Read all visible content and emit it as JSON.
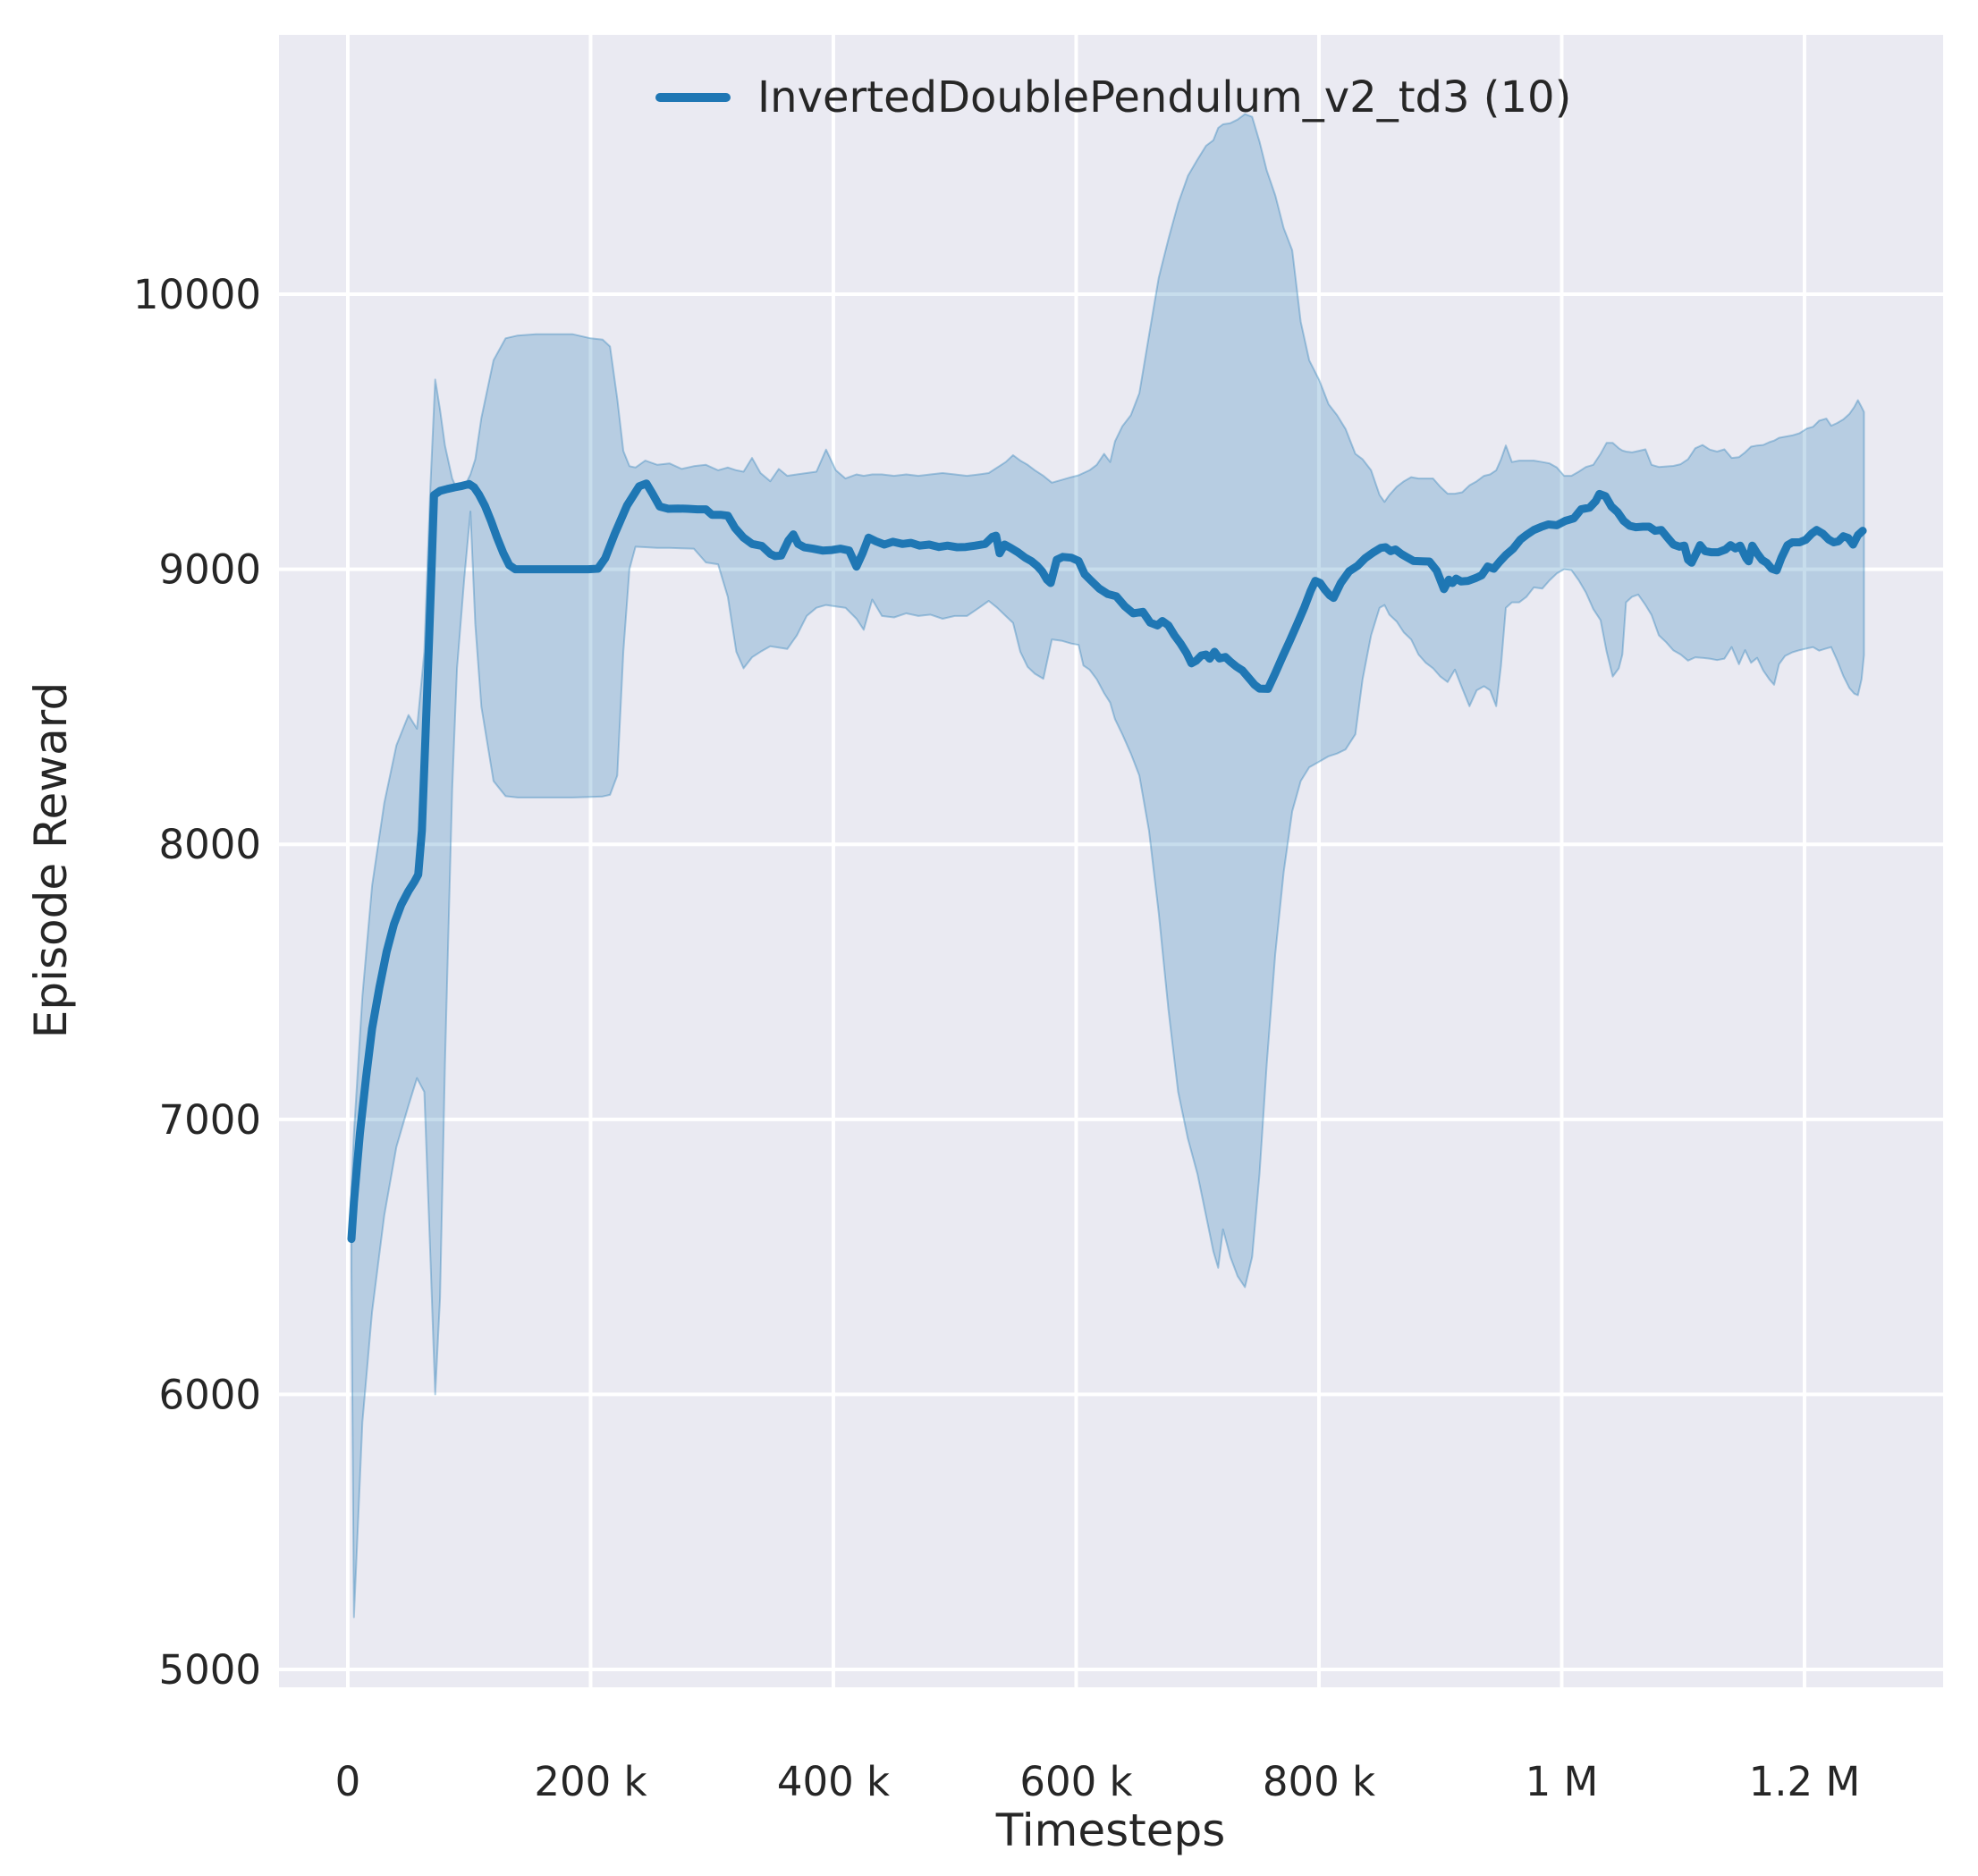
{
  "chart_data": {
    "type": "line",
    "title": "",
    "xlabel": "Timesteps",
    "ylabel": "Episode Reward",
    "grid": true,
    "legend_position": "upper right",
    "style": "seaborn-darkgrid",
    "x_unit": "timesteps, x values stored in thousands",
    "xlim_k": [
      -56.7,
      1314.2
    ],
    "ylim": [
      4935,
      10943
    ],
    "x_ticks": [
      {
        "value_k": 0,
        "label": "0"
      },
      {
        "value_k": 200,
        "label": "200 k"
      },
      {
        "value_k": 400,
        "label": "400 k"
      },
      {
        "value_k": 600,
        "label": "600 k"
      },
      {
        "value_k": 800,
        "label": "800 k"
      },
      {
        "value_k": 1000,
        "label": "1 M"
      },
      {
        "value_k": 1200,
        "label": "1.2 M"
      }
    ],
    "y_ticks": [
      {
        "value": 5000,
        "label": "5000"
      },
      {
        "value": 6000,
        "label": "6000"
      },
      {
        "value": 7000,
        "label": "7000"
      },
      {
        "value": 8000,
        "label": "8000"
      },
      {
        "value": 9000,
        "label": "9000"
      },
      {
        "value": 10000,
        "label": "10000"
      }
    ],
    "series": [
      {
        "name": "InvertedDoublePendulum_v2_td3 (10)",
        "color": "#1f77b4",
        "x_k": [
          3,
          5,
          10,
          15,
          20,
          26,
          32,
          38,
          44,
          50,
          55,
          58,
          61,
          64,
          67,
          69,
          71,
          76,
          82,
          88,
          94,
          100,
          104,
          108,
          113,
          118,
          123,
          128,
          133,
          138,
          148,
          158,
          168,
          178,
          188,
          198,
          206,
          212,
          220,
          230,
          240,
          246,
          251,
          257,
          264,
          272,
          280,
          288,
          295,
          300,
          307,
          313,
          319,
          326,
          333,
          341,
          348,
          352,
          357,
          363,
          367,
          371,
          376,
          383,
          391,
          399,
          406,
          413,
          419,
          424,
          429,
          435,
          442,
          449,
          457,
          464,
          471,
          479,
          487,
          494,
          502,
          509,
          517,
          525,
          531,
          534,
          537,
          541,
          546,
          552,
          558,
          563,
          568,
          572,
          576,
          579,
          584,
          589,
          596,
          602,
          607,
          612,
          619,
          626,
          633,
          640,
          647,
          655,
          661,
          667,
          671,
          676,
          681,
          686,
          691,
          695,
          699,
          703,
          707,
          710,
          714,
          718,
          723,
          727,
          732,
          737,
          742,
          747,
          751,
          758,
          764,
          770,
          776,
          782,
          788,
          793,
          797,
          801,
          805,
          809,
          812,
          818,
          825,
          832,
          838,
          845,
          851,
          855,
          859,
          863,
          868,
          872,
          878,
          885,
          891,
          897,
          903,
          907,
          910,
          913,
          917,
          923,
          929,
          934,
          939,
          944,
          949,
          954,
          960,
          966,
          971,
          977,
          983,
          989,
          996,
          1003,
          1010,
          1016,
          1023,
          1028,
          1031,
          1036,
          1041,
          1046,
          1051,
          1056,
          1061,
          1067,
          1072,
          1077,
          1082,
          1087,
          1092,
          1097,
          1101,
          1104,
          1107,
          1111,
          1114,
          1118,
          1123,
          1129,
          1135,
          1139,
          1143,
          1147,
          1152,
          1154,
          1157,
          1161,
          1165,
          1169,
          1173,
          1177,
          1181,
          1186,
          1190,
          1196,
          1201,
          1206,
          1210,
          1215,
          1220,
          1224,
          1228,
          1232,
          1236,
          1240,
          1244,
          1248
        ],
        "mean": [
          6565,
          6700,
          6950,
          7150,
          7330,
          7480,
          7610,
          7710,
          7780,
          7830,
          7865,
          7890,
          8050,
          8400,
          8750,
          9000,
          9270,
          9285,
          9292,
          9298,
          9303,
          9310,
          9298,
          9272,
          9230,
          9175,
          9115,
          9060,
          9015,
          9000,
          9000,
          9000,
          9000,
          9000,
          9000,
          9000,
          9002,
          9040,
          9130,
          9232,
          9302,
          9312,
          9275,
          9228,
          9220,
          9221,
          9220,
          9218,
          9218,
          9198,
          9198,
          9195,
          9150,
          9115,
          9092,
          9085,
          9056,
          9048,
          9050,
          9105,
          9127,
          9092,
          9080,
          9075,
          9068,
          9070,
          9075,
          9068,
          9010,
          9058,
          9115,
          9102,
          9090,
          9100,
          9092,
          9096,
          9086,
          9090,
          9081,
          9086,
          9080,
          9081,
          9086,
          9092,
          9118,
          9122,
          9058,
          9090,
          9078,
          9062,
          9042,
          9030,
          9012,
          8992,
          8962,
          8950,
          9035,
          9045,
          9042,
          9030,
          8982,
          8960,
          8930,
          8910,
          8902,
          8866,
          8840,
          8845,
          8806,
          8796,
          8812,
          8796,
          8760,
          8730,
          8695,
          8658,
          8668,
          8686,
          8690,
          8675,
          8700,
          8676,
          8681,
          8664,
          8646,
          8632,
          8606,
          8580,
          8566,
          8565,
          8622,
          8682,
          8740,
          8800,
          8862,
          8920,
          8958,
          8950,
          8925,
          8905,
          8896,
          8950,
          8993,
          9013,
          9040,
          9062,
          9078,
          9080,
          9066,
          9072,
          9055,
          9045,
          9030,
          9029,
          9028,
          8995,
          8928,
          8962,
          8950,
          8966,
          8956,
          8958,
          8968,
          8978,
          9010,
          9002,
          9028,
          9052,
          9075,
          9108,
          9125,
          9143,
          9154,
          9163,
          9160,
          9176,
          9185,
          9218,
          9224,
          9248,
          9274,
          9266,
          9228,
          9208,
          9176,
          9158,
          9153,
          9155,
          9155,
          9140,
          9143,
          9116,
          9090,
          9082,
          9086,
          9035,
          9024,
          9060,
          9088,
          9066,
          9062,
          9062,
          9072,
          9088,
          9076,
          9086,
          9040,
          9029,
          9086,
          9058,
          9034,
          9023,
          9002,
          8996,
          9042,
          9088,
          9098,
          9098,
          9107,
          9130,
          9143,
          9130,
          9108,
          9098,
          9102,
          9120,
          9114,
          9090,
          9124,
          9140
        ],
        "band": {
          "x_k": [
            3,
            5,
            12,
            20,
            30,
            40,
            50,
            57,
            63,
            68,
            72,
            76,
            80,
            86,
            90,
            96,
            101,
            105,
            110,
            120,
            130,
            140,
            155,
            170,
            185,
            200,
            210,
            216,
            222,
            227,
            232,
            237,
            245,
            255,
            265,
            275,
            285,
            295,
            305,
            313,
            320,
            326,
            333,
            340,
            348,
            355,
            362,
            370,
            378,
            386,
            394,
            402,
            410,
            419,
            425,
            432,
            440,
            450,
            460,
            470,
            480,
            490,
            500,
            510,
            520,
            528,
            535,
            542,
            548,
            554,
            560,
            566,
            573,
            580,
            588,
            596,
            602,
            606,
            611,
            617,
            623,
            628,
            632,
            638,
            645,
            652,
            660,
            668,
            676,
            684,
            692,
            700,
            707,
            713,
            717,
            721,
            727,
            733,
            739,
            745,
            751,
            757,
            764,
            771,
            778,
            785,
            792,
            800,
            808,
            815,
            822,
            830,
            836,
            843,
            850,
            854,
            858,
            864,
            870,
            876,
            882,
            888,
            894,
            900,
            906,
            912,
            918,
            924,
            930,
            936,
            941,
            946,
            950,
            954,
            959,
            965,
            971,
            977,
            984,
            990,
            996,
            1002,
            1008,
            1014,
            1020,
            1026,
            1032,
            1037,
            1042,
            1047,
            1050,
            1053,
            1058,
            1063,
            1069,
            1074,
            1080,
            1086,
            1092,
            1098,
            1104,
            1110,
            1116,
            1122,
            1128,
            1134,
            1140,
            1146,
            1151,
            1156,
            1161,
            1166,
            1171,
            1175,
            1179,
            1184,
            1190,
            1196,
            1202,
            1207,
            1212,
            1218,
            1222,
            1227,
            1232,
            1237,
            1241,
            1244,
            1247,
            1249
          ],
          "lower": [
            6450,
            5190,
            5900,
            6300,
            6650,
            6900,
            7050,
            7150,
            7100,
            6500,
            6000,
            6350,
            7200,
            8200,
            8640,
            8970,
            9210,
            8800,
            8500,
            8230,
            8175,
            8170,
            8170,
            8170,
            8170,
            8172,
            8174,
            8180,
            8250,
            8700,
            9000,
            9082,
            9080,
            9078,
            9078,
            9076,
            9075,
            9025,
            9018,
            8900,
            8700,
            8640,
            8680,
            8700,
            8720,
            8715,
            8710,
            8760,
            8830,
            8860,
            8870,
            8865,
            8860,
            8820,
            8780,
            8890,
            8830,
            8825,
            8840,
            8830,
            8835,
            8820,
            8830,
            8830,
            8860,
            8885,
            8860,
            8830,
            8805,
            8700,
            8645,
            8620,
            8602,
            8745,
            8740,
            8730,
            8725,
            8650,
            8635,
            8600,
            8550,
            8515,
            8455,
            8400,
            8330,
            8250,
            8050,
            7750,
            7400,
            7100,
            6930,
            6800,
            6650,
            6520,
            6460,
            6600,
            6500,
            6430,
            6390,
            6500,
            6800,
            7200,
            7600,
            7900,
            8120,
            8230,
            8280,
            8300,
            8320,
            8330,
            8345,
            8400,
            8600,
            8760,
            8860,
            8870,
            8835,
            8810,
            8770,
            8745,
            8690,
            8660,
            8640,
            8610,
            8590,
            8635,
            8567,
            8502,
            8560,
            8575,
            8560,
            8502,
            8650,
            8860,
            8880,
            8880,
            8900,
            8934,
            8930,
            8960,
            8985,
            9000,
            8997,
            8960,
            8915,
            8855,
            8815,
            8700,
            8610,
            8640,
            8690,
            8880,
            8900,
            8908,
            8870,
            8834,
            8760,
            8735,
            8705,
            8690,
            8668,
            8680,
            8678,
            8675,
            8670,
            8675,
            8717,
            8655,
            8706,
            8660,
            8678,
            8632,
            8600,
            8580,
            8655,
            8685,
            8698,
            8706,
            8712,
            8717,
            8704,
            8712,
            8717,
            8668,
            8612,
            8568,
            8548,
            8542,
            8600,
            8688
          ],
          "upper": [
            6750,
            6950,
            7450,
            7850,
            8150,
            8360,
            8470,
            8420,
            8700,
            9300,
            9690,
            9580,
            9450,
            9330,
            9290,
            9300,
            9345,
            9400,
            9550,
            9760,
            9840,
            9850,
            9855,
            9855,
            9855,
            9840,
            9835,
            9810,
            9620,
            9430,
            9375,
            9370,
            9395,
            9380,
            9385,
            9365,
            9375,
            9380,
            9360,
            9370,
            9360,
            9355,
            9405,
            9350,
            9320,
            9365,
            9340,
            9345,
            9350,
            9355,
            9435,
            9360,
            9330,
            9345,
            9340,
            9345,
            9345,
            9340,
            9345,
            9340,
            9345,
            9350,
            9345,
            9340,
            9345,
            9350,
            9370,
            9390,
            9415,
            9395,
            9380,
            9360,
            9340,
            9315,
            9325,
            9335,
            9342,
            9350,
            9360,
            9380,
            9420,
            9390,
            9465,
            9520,
            9560,
            9640,
            9850,
            10060,
            10200,
            10330,
            10430,
            10490,
            10540,
            10560,
            10605,
            10618,
            10622,
            10635,
            10655,
            10645,
            10555,
            10450,
            10360,
            10240,
            10160,
            9900,
            9760,
            9690,
            9600,
            9560,
            9510,
            9420,
            9400,
            9360,
            9270,
            9245,
            9270,
            9300,
            9320,
            9335,
            9330,
            9330,
            9330,
            9300,
            9275,
            9275,
            9280,
            9305,
            9320,
            9340,
            9345,
            9360,
            9400,
            9450,
            9390,
            9395,
            9395,
            9395,
            9390,
            9385,
            9370,
            9340,
            9340,
            9355,
            9372,
            9380,
            9420,
            9460,
            9460,
            9440,
            9432,
            9428,
            9425,
            9430,
            9436,
            9380,
            9372,
            9374,
            9376,
            9382,
            9400,
            9440,
            9452,
            9435,
            9428,
            9436,
            9405,
            9408,
            9425,
            9446,
            9450,
            9452,
            9462,
            9468,
            9478,
            9482,
            9487,
            9495,
            9512,
            9518,
            9540,
            9548,
            9522,
            9532,
            9545,
            9565,
            9590,
            9615,
            9590,
            9572
          ]
        }
      }
    ]
  },
  "colors": {
    "line": "#1f77b4",
    "band_fill": "rgba(31,119,180,0.25)",
    "band_edge": "rgba(31,119,180,0.35)",
    "axes_background": "#eaeaf2",
    "gridline": "#ffffff",
    "text": "#262626",
    "figure_background": "#ffffff"
  }
}
